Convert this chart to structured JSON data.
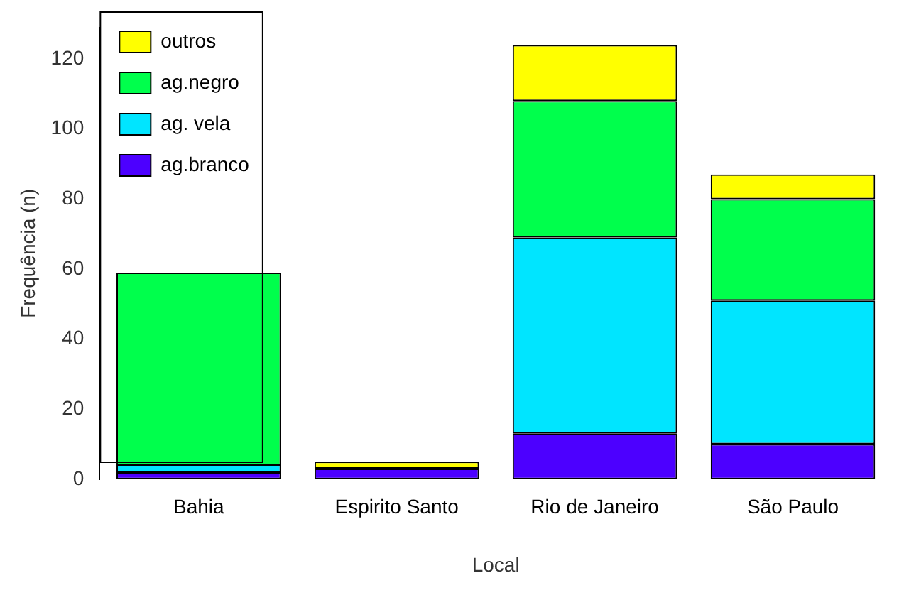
{
  "chart_data": {
    "type": "bar",
    "stacked": true,
    "xlabel": "Local",
    "ylabel": "Frequência (n)",
    "categories": [
      "Bahia",
      "Espirito Santo",
      "Rio de Janeiro",
      "São Paulo"
    ],
    "series": [
      {
        "name": "ag.branco",
        "color": "#4c00ff",
        "values": [
          2,
          3,
          13,
          10
        ]
      },
      {
        "name": "ag. vela",
        "color": "#00e5ff",
        "values": [
          2,
          0,
          56,
          41
        ]
      },
      {
        "name": "ag.negro",
        "color": "#00ff4c",
        "values": [
          55,
          0,
          39,
          29
        ]
      },
      {
        "name": "outros",
        "color": "#ffff00",
        "values": [
          0,
          2,
          16,
          7
        ]
      }
    ],
    "ylim": [
      0,
      129
    ],
    "yticks": [
      0,
      20,
      40,
      60,
      80,
      100,
      120
    ],
    "grid": false,
    "legend": "top left"
  }
}
